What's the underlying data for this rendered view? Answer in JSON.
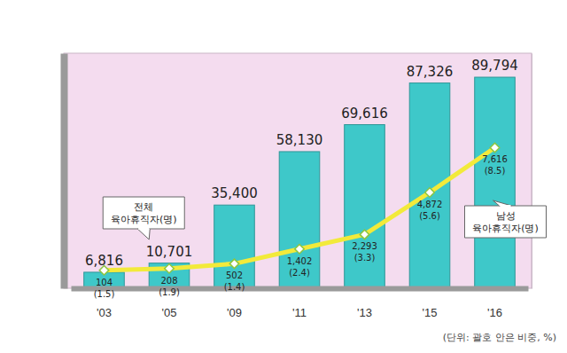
{
  "chart_data": {
    "type": "bar",
    "categories": [
      "'03",
      "'05",
      "'09",
      "'11",
      "'13",
      "'15",
      "'16"
    ],
    "series": [
      {
        "name": "전체 육아휴직자(명)",
        "type": "bar",
        "color": "#3ec8c9",
        "values": [
          6816,
          10701,
          35400,
          58130,
          69616,
          87326,
          89794
        ],
        "value_labels": [
          "6,816",
          "10,701",
          "35,400",
          "58,130",
          "69,616",
          "87,326",
          "89,794"
        ]
      },
      {
        "name": "남성 육아휴직자(명)",
        "type": "line",
        "axis": "y2",
        "color": "#f2ea3a",
        "marker": "diamond",
        "values": [
          104,
          208,
          502,
          1402,
          2293,
          4872,
          7616
        ],
        "value_labels": [
          "104",
          "208",
          "502",
          "1,402",
          "2,293",
          "4,872",
          "7,616"
        ],
        "shares": [
          1.5,
          1.9,
          1.4,
          2.4,
          3.3,
          5.6,
          8.5
        ],
        "share_labels": [
          "(1.5)",
          "(1.9)",
          "(1.4)",
          "(2.4)",
          "(3.3)",
          "(5.6)",
          "(8.5)"
        ]
      }
    ],
    "ylim": [
      0,
      100000
    ],
    "y2lim": [
      -1000,
      13400
    ],
    "data_labels": true,
    "tick_labels": "x",
    "annotations": [
      "(단위: 괄호 안은 비중, %)"
    ]
  }
}
